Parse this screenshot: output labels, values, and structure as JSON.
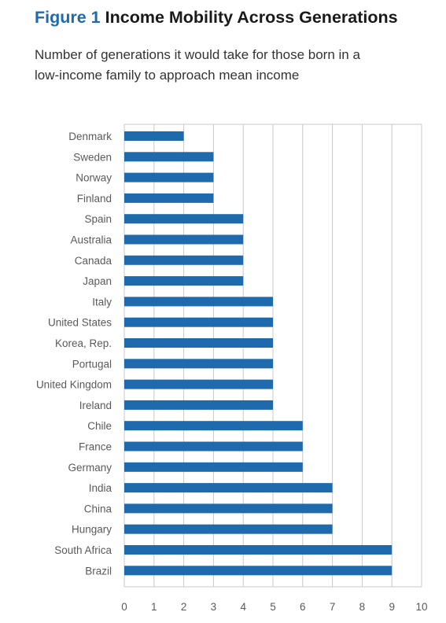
{
  "figure": {
    "number_label": "Figure 1",
    "title": "Income Mobility Across Generations",
    "subtitle_lines": [
      "Number of generations it would take for those born in a",
      "low-income family to approach mean income"
    ]
  },
  "colors": {
    "bar": "#1e6aad",
    "grid": "#c8c8c8",
    "label": "#5a5a5a",
    "number_label": "#1e6aad"
  },
  "chart_data": {
    "type": "bar",
    "orientation": "horizontal",
    "title": "",
    "xlabel": "",
    "ylabel": "",
    "xlim": [
      0,
      10
    ],
    "xticks": [
      "0",
      "1",
      "2",
      "3",
      "4",
      "5",
      "6",
      "7",
      "8",
      "9",
      "10"
    ],
    "grid": true,
    "legend": "none",
    "categories": [
      "Denmark",
      "Sweden",
      "Norway",
      "Finland",
      "Spain",
      "Australia",
      "Canada",
      "Japan",
      "Italy",
      "United States",
      "Korea, Rep.",
      "Portugal",
      "United Kingdom",
      "Ireland",
      "Chile",
      "France",
      "Germany",
      "India",
      "China",
      "Hungary",
      "South Africa",
      "Brazil"
    ],
    "values": [
      2,
      3,
      3,
      3,
      4,
      4,
      4,
      4,
      5,
      5,
      5,
      5,
      5,
      5,
      6,
      6,
      6,
      7,
      7,
      7,
      9,
      9
    ]
  }
}
